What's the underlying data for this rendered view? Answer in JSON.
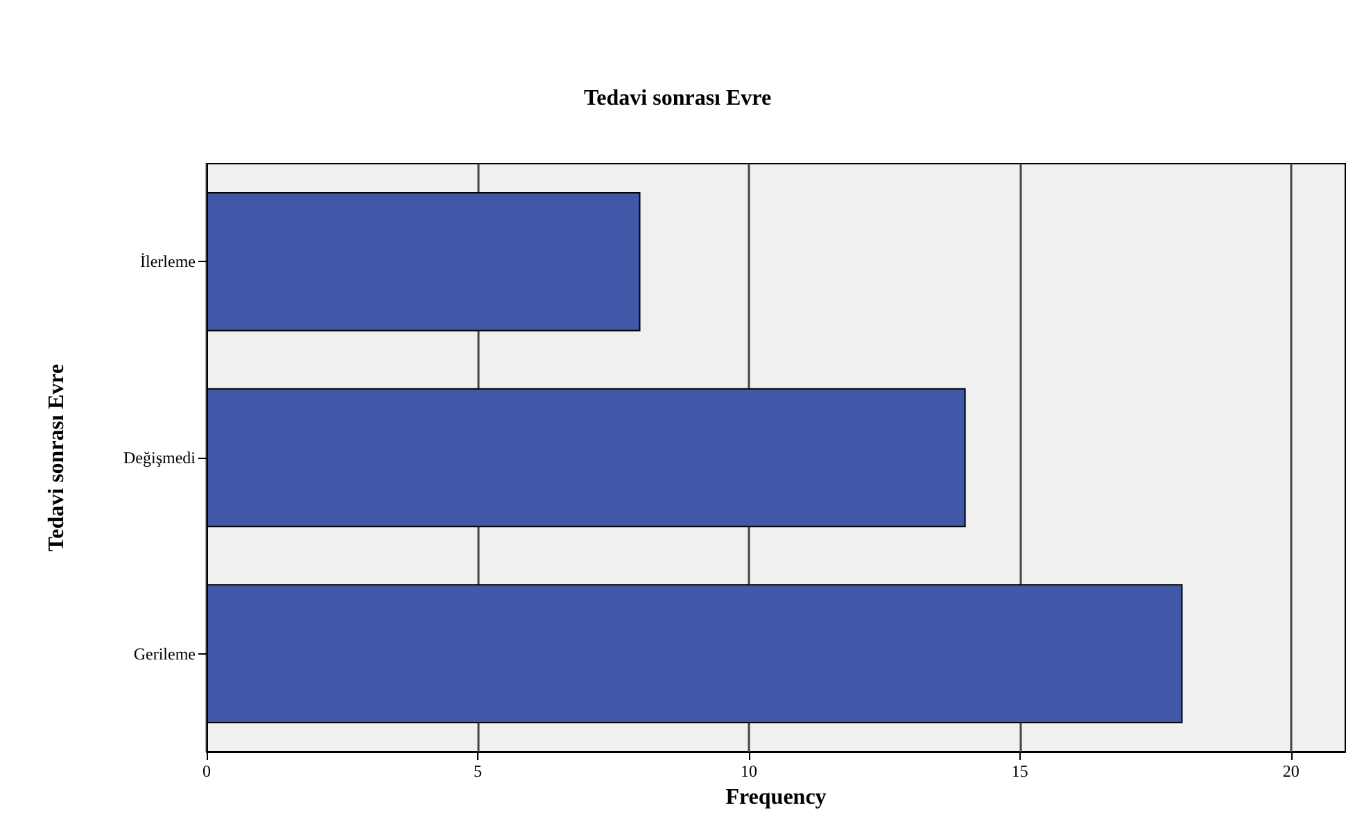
{
  "chart_data": {
    "type": "bar",
    "orientation": "horizontal",
    "title": "Tedavi sonrası Evre",
    "xlabel": "Frequency",
    "ylabel": "Tedavi sonrası Evre",
    "categories": [
      "İlerleme",
      "Değişmedi",
      "Gerileme"
    ],
    "series": [
      {
        "color": "#3f58a8",
        "values": [
          8,
          14,
          18
        ]
      }
    ],
    "xlim": [
      0,
      21
    ],
    "xticks": [
      0,
      5,
      10,
      15,
      20
    ],
    "grid": "x"
  }
}
